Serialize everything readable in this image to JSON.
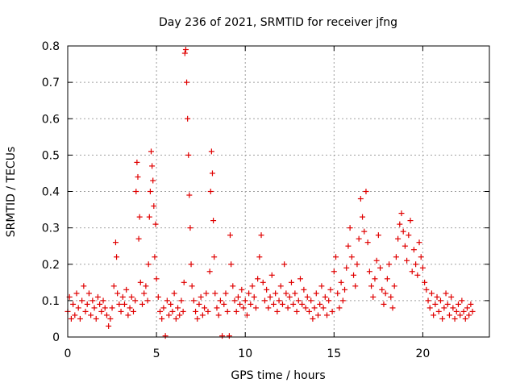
{
  "chart_data": {
    "type": "scatter",
    "title": "Day 236 of 2021, SRMTID for receiver jfng",
    "xlabel": "GPS time / hours",
    "ylabel": "SRMTID / TECUs",
    "xlim": [
      0,
      23.75
    ],
    "ylim": [
      0,
      0.8
    ],
    "xticks": [
      0,
      5,
      10,
      15,
      20
    ],
    "yticks": [
      0,
      0.1,
      0.2,
      0.3,
      0.4,
      0.5,
      0.6,
      0.7,
      0.8
    ],
    "grid": true,
    "marker": "plus",
    "series": [
      {
        "name": "SRMTID",
        "color": "#e00000",
        "points": [
          [
            0.0,
            0.07
          ],
          [
            0.1,
            0.11
          ],
          [
            0.2,
            0.05
          ],
          [
            0.3,
            0.09
          ],
          [
            0.4,
            0.06
          ],
          [
            0.5,
            0.12
          ],
          [
            0.6,
            0.08
          ],
          [
            0.7,
            0.05
          ],
          [
            0.8,
            0.1
          ],
          [
            0.9,
            0.14
          ],
          [
            1.0,
            0.07
          ],
          [
            1.1,
            0.09
          ],
          [
            1.2,
            0.12
          ],
          [
            1.3,
            0.06
          ],
          [
            1.4,
            0.1
          ],
          [
            1.5,
            0.08
          ],
          [
            1.6,
            0.05
          ],
          [
            1.7,
            0.11
          ],
          [
            1.8,
            0.09
          ],
          [
            1.9,
            0.07
          ],
          [
            2.0,
            0.1
          ],
          [
            2.1,
            0.08
          ],
          [
            2.2,
            0.06
          ],
          [
            2.3,
            0.03
          ],
          [
            2.4,
            0.05
          ],
          [
            2.5,
            0.08
          ],
          [
            2.6,
            0.14
          ],
          [
            2.7,
            0.26
          ],
          [
            2.75,
            0.22
          ],
          [
            2.8,
            0.12
          ],
          [
            2.9,
            0.09
          ],
          [
            3.0,
            0.07
          ],
          [
            3.1,
            0.11
          ],
          [
            3.2,
            0.09
          ],
          [
            3.3,
            0.13
          ],
          [
            3.4,
            0.06
          ],
          [
            3.5,
            0.08
          ],
          [
            3.6,
            0.11
          ],
          [
            3.7,
            0.07
          ],
          [
            3.8,
            0.1
          ],
          [
            3.85,
            0.4
          ],
          [
            3.9,
            0.48
          ],
          [
            3.95,
            0.44
          ],
          [
            4.0,
            0.27
          ],
          [
            4.05,
            0.33
          ],
          [
            4.1,
            0.15
          ],
          [
            4.2,
            0.09
          ],
          [
            4.3,
            0.12
          ],
          [
            4.4,
            0.14
          ],
          [
            4.5,
            0.1
          ],
          [
            4.55,
            0.2
          ],
          [
            4.6,
            0.33
          ],
          [
            4.65,
            0.4
          ],
          [
            4.7,
            0.51
          ],
          [
            4.75,
            0.47
          ],
          [
            4.8,
            0.43
          ],
          [
            4.85,
            0.36
          ],
          [
            4.9,
            0.22
          ],
          [
            4.95,
            0.31
          ],
          [
            5.0,
            0.16
          ],
          [
            5.1,
            0.11
          ],
          [
            5.2,
            0.07
          ],
          [
            5.3,
            0.05
          ],
          [
            5.4,
            0.08
          ],
          [
            5.5,
            0.003
          ],
          [
            5.6,
            0.1
          ],
          [
            5.7,
            0.06
          ],
          [
            5.8,
            0.09
          ],
          [
            5.9,
            0.07
          ],
          [
            6.0,
            0.12
          ],
          [
            6.1,
            0.05
          ],
          [
            6.2,
            0.08
          ],
          [
            6.3,
            0.06
          ],
          [
            6.4,
            0.1
          ],
          [
            6.5,
            0.07
          ],
          [
            6.55,
            0.15
          ],
          [
            6.6,
            0.78
          ],
          [
            6.65,
            0.79
          ],
          [
            6.7,
            0.7
          ],
          [
            6.75,
            0.6
          ],
          [
            6.8,
            0.5
          ],
          [
            6.85,
            0.39
          ],
          [
            6.9,
            0.3
          ],
          [
            6.95,
            0.2
          ],
          [
            7.0,
            0.14
          ],
          [
            7.1,
            0.1
          ],
          [
            7.2,
            0.07
          ],
          [
            7.3,
            0.05
          ],
          [
            7.4,
            0.09
          ],
          [
            7.5,
            0.11
          ],
          [
            7.6,
            0.06
          ],
          [
            7.7,
            0.08
          ],
          [
            7.8,
            0.12
          ],
          [
            7.9,
            0.07
          ],
          [
            8.0,
            0.18
          ],
          [
            8.05,
            0.4
          ],
          [
            8.1,
            0.51
          ],
          [
            8.15,
            0.45
          ],
          [
            8.2,
            0.32
          ],
          [
            8.25,
            0.22
          ],
          [
            8.3,
            0.12
          ],
          [
            8.4,
            0.08
          ],
          [
            8.5,
            0.06
          ],
          [
            8.6,
            0.1
          ],
          [
            8.7,
            0.003
          ],
          [
            8.8,
            0.09
          ],
          [
            8.9,
            0.12
          ],
          [
            9.0,
            0.07
          ],
          [
            9.1,
            0.003
          ],
          [
            9.15,
            0.28
          ],
          [
            9.2,
            0.2
          ],
          [
            9.3,
            0.14
          ],
          [
            9.4,
            0.1
          ],
          [
            9.5,
            0.07
          ],
          [
            9.6,
            0.11
          ],
          [
            9.7,
            0.09
          ],
          [
            9.8,
            0.13
          ],
          [
            9.9,
            0.08
          ],
          [
            10.0,
            0.1
          ],
          [
            10.1,
            0.06
          ],
          [
            10.2,
            0.12
          ],
          [
            10.3,
            0.09
          ],
          [
            10.4,
            0.14
          ],
          [
            10.5,
            0.11
          ],
          [
            10.6,
            0.08
          ],
          [
            10.7,
            0.16
          ],
          [
            10.8,
            0.22
          ],
          [
            10.9,
            0.28
          ],
          [
            11.0,
            0.15
          ],
          [
            11.1,
            0.1
          ],
          [
            11.2,
            0.13
          ],
          [
            11.3,
            0.08
          ],
          [
            11.4,
            0.11
          ],
          [
            11.5,
            0.17
          ],
          [
            11.6,
            0.09
          ],
          [
            11.7,
            0.12
          ],
          [
            11.8,
            0.07
          ],
          [
            11.9,
            0.1
          ],
          [
            12.0,
            0.14
          ],
          [
            12.1,
            0.09
          ],
          [
            12.2,
            0.2
          ],
          [
            12.3,
            0.12
          ],
          [
            12.4,
            0.08
          ],
          [
            12.5,
            0.11
          ],
          [
            12.6,
            0.15
          ],
          [
            12.7,
            0.09
          ],
          [
            12.8,
            0.12
          ],
          [
            12.9,
            0.07
          ],
          [
            13.0,
            0.1
          ],
          [
            13.1,
            0.16
          ],
          [
            13.2,
            0.09
          ],
          [
            13.3,
            0.13
          ],
          [
            13.4,
            0.08
          ],
          [
            13.5,
            0.11
          ],
          [
            13.6,
            0.07
          ],
          [
            13.7,
            0.1
          ],
          [
            13.8,
            0.05
          ],
          [
            13.9,
            0.08
          ],
          [
            14.0,
            0.12
          ],
          [
            14.1,
            0.06
          ],
          [
            14.2,
            0.09
          ],
          [
            14.3,
            0.14
          ],
          [
            14.4,
            0.08
          ],
          [
            14.5,
            0.11
          ],
          [
            14.6,
            0.06
          ],
          [
            14.7,
            0.1
          ],
          [
            14.8,
            0.13
          ],
          [
            14.9,
            0.07
          ],
          [
            15.0,
            0.18
          ],
          [
            15.1,
            0.22
          ],
          [
            15.2,
            0.12
          ],
          [
            15.3,
            0.08
          ],
          [
            15.4,
            0.15
          ],
          [
            15.5,
            0.1
          ],
          [
            15.6,
            0.13
          ],
          [
            15.7,
            0.19
          ],
          [
            15.8,
            0.25
          ],
          [
            15.9,
            0.3
          ],
          [
            16.0,
            0.22
          ],
          [
            16.1,
            0.17
          ],
          [
            16.2,
            0.14
          ],
          [
            16.3,
            0.2
          ],
          [
            16.4,
            0.27
          ],
          [
            16.5,
            0.38
          ],
          [
            16.6,
            0.33
          ],
          [
            16.7,
            0.29
          ],
          [
            16.8,
            0.4
          ],
          [
            16.9,
            0.26
          ],
          [
            17.0,
            0.18
          ],
          [
            17.1,
            0.14
          ],
          [
            17.2,
            0.11
          ],
          [
            17.3,
            0.16
          ],
          [
            17.4,
            0.21
          ],
          [
            17.5,
            0.28
          ],
          [
            17.6,
            0.19
          ],
          [
            17.7,
            0.13
          ],
          [
            17.8,
            0.09
          ],
          [
            17.9,
            0.12
          ],
          [
            18.0,
            0.16
          ],
          [
            18.1,
            0.2
          ],
          [
            18.2,
            0.11
          ],
          [
            18.3,
            0.08
          ],
          [
            18.4,
            0.14
          ],
          [
            18.5,
            0.22
          ],
          [
            18.6,
            0.27
          ],
          [
            18.7,
            0.31
          ],
          [
            18.8,
            0.34
          ],
          [
            18.9,
            0.29
          ],
          [
            19.0,
            0.25
          ],
          [
            19.1,
            0.21
          ],
          [
            19.2,
            0.28
          ],
          [
            19.3,
            0.32
          ],
          [
            19.4,
            0.18
          ],
          [
            19.5,
            0.24
          ],
          [
            19.6,
            0.2
          ],
          [
            19.7,
            0.17
          ],
          [
            19.8,
            0.26
          ],
          [
            19.9,
            0.22
          ],
          [
            20.0,
            0.19
          ],
          [
            20.1,
            0.15
          ],
          [
            20.2,
            0.13
          ],
          [
            20.3,
            0.1
          ],
          [
            20.4,
            0.08
          ],
          [
            20.5,
            0.12
          ],
          [
            20.6,
            0.06
          ],
          [
            20.7,
            0.09
          ],
          [
            20.8,
            0.11
          ],
          [
            20.9,
            0.07
          ],
          [
            21.0,
            0.1
          ],
          [
            21.1,
            0.05
          ],
          [
            21.2,
            0.08
          ],
          [
            21.3,
            0.12
          ],
          [
            21.4,
            0.09
          ],
          [
            21.5,
            0.06
          ],
          [
            21.6,
            0.11
          ],
          [
            21.7,
            0.08
          ],
          [
            21.8,
            0.05
          ],
          [
            21.9,
            0.07
          ],
          [
            22.0,
            0.09
          ],
          [
            22.1,
            0.06
          ],
          [
            22.2,
            0.1
          ],
          [
            22.3,
            0.07
          ],
          [
            22.4,
            0.05
          ],
          [
            22.5,
            0.08
          ],
          [
            22.6,
            0.06
          ],
          [
            22.7,
            0.09
          ],
          [
            22.8,
            0.07
          ]
        ]
      }
    ]
  }
}
